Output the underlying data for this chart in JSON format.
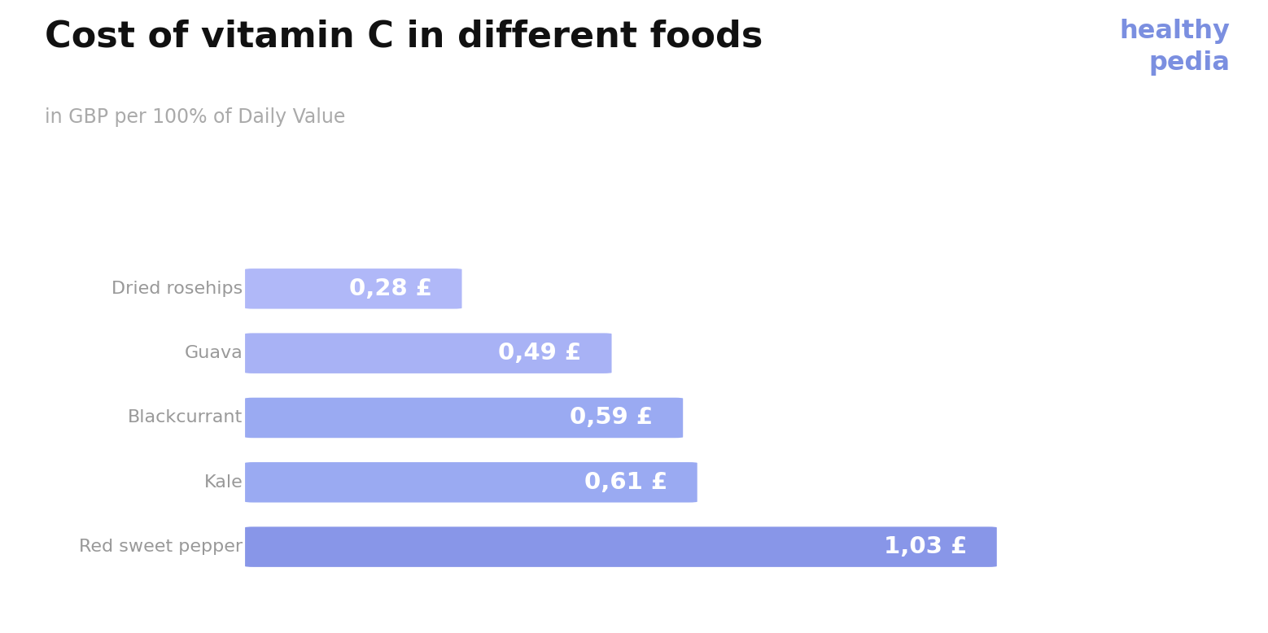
{
  "title": "Cost of vitamin C in different foods",
  "subtitle": "in GBP per 100% of Daily Value",
  "categories": [
    "Dried rosehips",
    "Guava",
    "Blackcurrant",
    "Kale",
    "Red sweet pepper"
  ],
  "values": [
    0.28,
    0.49,
    0.59,
    0.61,
    1.03
  ],
  "labels": [
    "0,28 £",
    "0,49 £",
    "0,59 £",
    "0,61 £",
    "1,03 £"
  ],
  "bar_colors": [
    "#b0b8f8",
    "#a8b2f5",
    "#9aaaf2",
    "#9aaaf2",
    "#8896e8"
  ],
  "title_color": "#111111",
  "subtitle_color": "#aaaaaa",
  "label_color_axis": "#999999",
  "label_color_bar": "#ffffff",
  "healthypedia_color": "#7b8fe0",
  "background_color": "#ffffff",
  "title_fontsize": 32,
  "subtitle_fontsize": 17,
  "bar_label_fontsize": 21,
  "axis_label_fontsize": 16,
  "brand_fontsize": 23,
  "xlim_max": 1.28
}
